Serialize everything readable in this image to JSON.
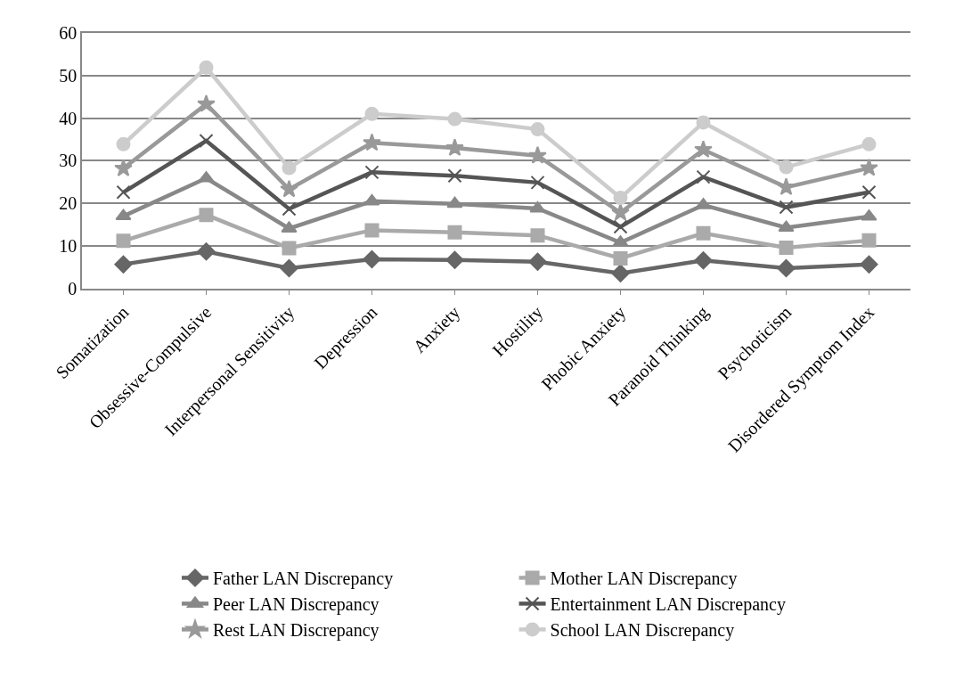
{
  "chart_data": {
    "type": "line",
    "categories": [
      "Somatization",
      "Obsessive-Compulsive",
      "Interpersonal Sensitivity",
      "Depression",
      "Anxiety",
      "Hostility",
      "Phobic Anxiety",
      "Paranoid Thinking",
      "Psychoticism",
      "Disordered Symptom Index"
    ],
    "series": [
      {
        "name": "Father LAN Discrepancy",
        "color": "#666666",
        "marker": "diamond",
        "values": [
          5.7,
          8.7,
          4.8,
          6.9,
          6.7,
          6.3,
          3.6,
          6.6,
          4.8,
          5.7
        ]
      },
      {
        "name": "Mother LAN Discrepancy",
        "color": "#aaaaaa",
        "marker": "square",
        "values": [
          11.2,
          17.3,
          9.5,
          13.7,
          13.2,
          12.5,
          7.1,
          13.0,
          9.6,
          11.3
        ]
      },
      {
        "name": "Peer LAN Discrepancy",
        "color": "#888888",
        "marker": "triangle",
        "values": [
          17.0,
          25.9,
          14.1,
          20.5,
          19.9,
          18.8,
          10.8,
          19.6,
          14.3,
          16.9
        ]
      },
      {
        "name": "Entertainment LAN Discrepancy",
        "color": "#555555",
        "marker": "cross",
        "values": [
          22.6,
          34.7,
          18.7,
          27.3,
          26.5,
          24.9,
          14.5,
          26.2,
          19.1,
          22.6
        ]
      },
      {
        "name": "Rest LAN Discrepancy",
        "color": "#999999",
        "marker": "star",
        "values": [
          28.2,
          43.3,
          23.3,
          34.2,
          33.0,
          31.2,
          17.8,
          32.6,
          23.8,
          28.3
        ]
      },
      {
        "name": "School LAN Discrepancy",
        "color": "#cccccc",
        "marker": "circle",
        "values": [
          33.9,
          51.9,
          28.3,
          41.0,
          39.8,
          37.4,
          21.3,
          39.0,
          28.5,
          33.9
        ]
      }
    ],
    "ylim": [
      0,
      60
    ],
    "yticks": [
      0,
      10,
      20,
      30,
      40,
      50,
      60
    ],
    "grid": "y",
    "legend": "bottom",
    "line_style": "solid"
  }
}
